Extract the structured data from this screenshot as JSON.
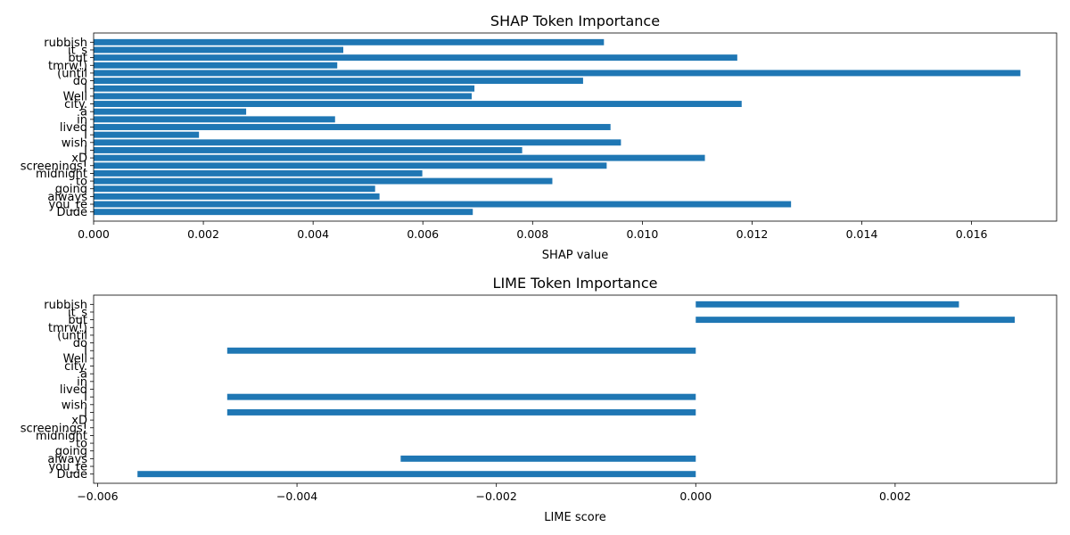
{
  "chart_data": [
    {
      "type": "bar",
      "orientation": "horizontal",
      "title": "SHAP Token Importance",
      "xlabel": "SHAP value",
      "ylabel": "",
      "xlim": [
        0,
        0.01755
      ],
      "xticks": [
        0.0,
        0.002,
        0.004,
        0.006,
        0.008,
        0.01,
        0.012,
        0.014,
        0.016
      ],
      "xtick_labels": [
        "0.000",
        "0.002",
        "0.004",
        "0.006",
        "0.008",
        "0.010",
        "0.012",
        "0.014",
        "0.016"
      ],
      "grid": false,
      "bar_color": "#1f77b4",
      "categories": [
        "rubbish",
        "it_s",
        "but",
        "tmrw!)",
        "(until",
        "do",
        "I",
        "Well",
        "city.",
        "a",
        "in",
        "lived",
        "I",
        "wish",
        "I",
        "xD",
        "screenings!",
        "midnight",
        "to",
        "going",
        "always",
        "you_re",
        "Dude"
      ],
      "values": [
        0.0093,
        0.00455,
        0.01173,
        0.00444,
        0.01689,
        0.00892,
        0.00694,
        0.00689,
        0.01181,
        0.00278,
        0.0044,
        0.00942,
        0.00192,
        0.00961,
        0.00781,
        0.01114,
        0.00935,
        0.00599,
        0.00836,
        0.00513,
        0.00521,
        0.01271,
        0.00691
      ]
    },
    {
      "type": "bar",
      "orientation": "horizontal",
      "title": "LIME Token Importance",
      "xlabel": "LIME score",
      "ylabel": "",
      "xlim": [
        -0.00604,
        0.00362
      ],
      "xticks": [
        -0.006,
        -0.004,
        -0.002,
        0.0,
        0.002
      ],
      "xtick_labels": [
        "−0.006",
        "−0.004",
        "−0.002",
        "0.000",
        "0.002"
      ],
      "grid": false,
      "bar_color": "#1f77b4",
      "categories": [
        "rubbish",
        "it_s",
        "but",
        "tmrw!)",
        "(until",
        "do",
        "I",
        "Well",
        "city.",
        "a",
        "in",
        "lived",
        "I",
        "wish",
        "I",
        "xD",
        "screenings!",
        "midnight",
        "to",
        "going",
        "always",
        "you_re",
        "Dude"
      ],
      "values": [
        0.00264,
        0,
        0.0032,
        0,
        0,
        0,
        -0.0047,
        0,
        0,
        0,
        0,
        0,
        -0.0047,
        0,
        -0.0047,
        0,
        0,
        0,
        0,
        0,
        -0.00296,
        0,
        -0.0056
      ]
    }
  ]
}
